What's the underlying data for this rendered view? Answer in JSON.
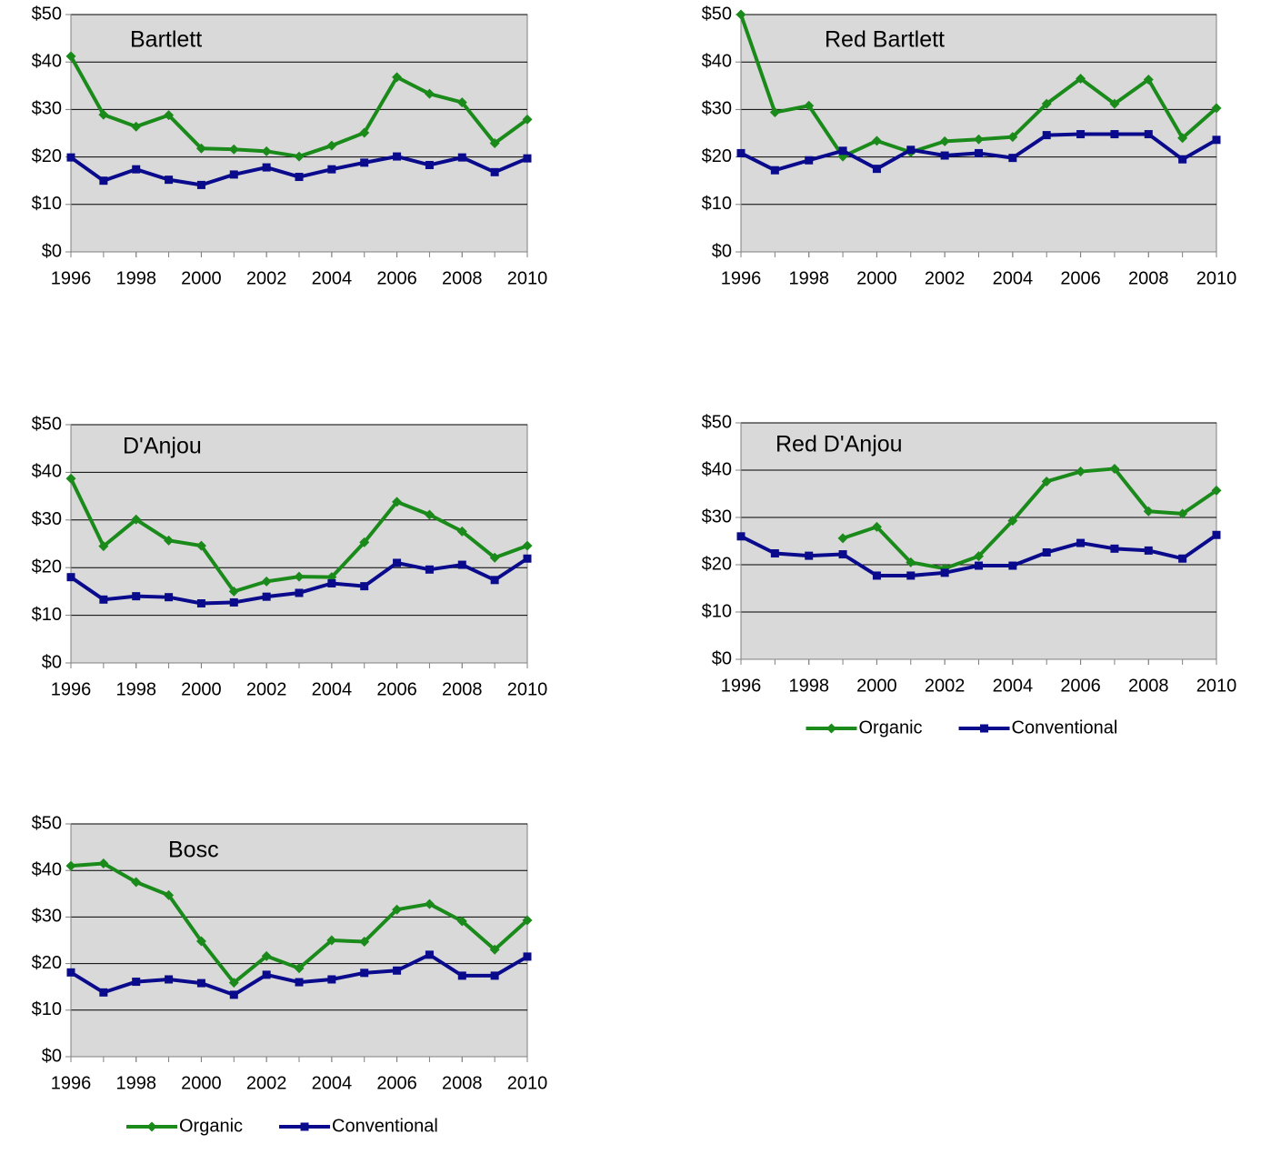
{
  "chart_data": [
    {
      "type": "line",
      "title": "Bartlett",
      "x": [
        1996,
        1997,
        1998,
        1999,
        2000,
        2001,
        2002,
        2003,
        2004,
        2005,
        2006,
        2007,
        2008,
        2009,
        2010
      ],
      "xlim": [
        1996,
        2010
      ],
      "xticks": [
        1996,
        1998,
        2000,
        2002,
        2004,
        2006,
        2008,
        2010
      ],
      "ylim": [
        0,
        50
      ],
      "yticks": [
        {
          "value": 0,
          "label": "$0"
        },
        {
          "value": 10,
          "label": "$10"
        },
        {
          "value": 20,
          "label": "$20"
        },
        {
          "value": 30,
          "label": "$30"
        },
        {
          "value": 40,
          "label": "$40"
        },
        {
          "value": 50,
          "label": "$50"
        }
      ],
      "grid": true,
      "series": [
        {
          "name": "Organic",
          "color": "#1a8a1a",
          "marker": "diamond",
          "values": [
            41.2,
            28.9,
            26.4,
            28.8,
            21.8,
            21.6,
            21.2,
            20.1,
            22.4,
            25.1,
            36.8,
            33.3,
            31.5,
            22.9,
            27.9
          ]
        },
        {
          "name": "Conventional",
          "color": "#0a0a8c",
          "marker": "square",
          "values": [
            19.9,
            15.0,
            17.4,
            15.2,
            14.1,
            16.3,
            17.8,
            15.8,
            17.4,
            18.8,
            20.1,
            18.3,
            19.9,
            16.8,
            19.7
          ]
        }
      ]
    },
    {
      "type": "line",
      "title": "Red Bartlett",
      "x": [
        1996,
        1997,
        1998,
        1999,
        2000,
        2001,
        2002,
        2003,
        2004,
        2005,
        2006,
        2007,
        2008,
        2009,
        2010
      ],
      "xlim": [
        1996,
        2010
      ],
      "xticks": [
        1996,
        1998,
        2000,
        2002,
        2004,
        2006,
        2008,
        2010
      ],
      "ylim": [
        0,
        50
      ],
      "yticks": [
        {
          "value": 0,
          "label": "$0"
        },
        {
          "value": 10,
          "label": "$10"
        },
        {
          "value": 20,
          "label": "$20"
        },
        {
          "value": 30,
          "label": "$30"
        },
        {
          "value": 40,
          "label": "$40"
        },
        {
          "value": 50,
          "label": "$50"
        }
      ],
      "grid": true,
      "series": [
        {
          "name": "Organic",
          "color": "#1a8a1a",
          "marker": "diamond",
          "values": [
            50,
            29.4,
            30.8,
            20.1,
            23.4,
            21.0,
            23.3,
            23.7,
            24.2,
            31.2,
            36.5,
            31.2,
            36.3,
            24.0,
            30.3
          ]
        },
        {
          "name": "Conventional",
          "color": "#0a0a8c",
          "marker": "square",
          "values": [
            20.8,
            17.2,
            19.3,
            21.3,
            17.5,
            21.5,
            20.3,
            20.8,
            19.8,
            24.6,
            24.8,
            24.8,
            24.8,
            19.5,
            23.6
          ]
        }
      ]
    },
    {
      "type": "line",
      "title": "D'Anjou",
      "x": [
        1996,
        1997,
        1998,
        1999,
        2000,
        2001,
        2002,
        2003,
        2004,
        2005,
        2006,
        2007,
        2008,
        2009,
        2010
      ],
      "xlim": [
        1996,
        2010
      ],
      "xticks": [
        1996,
        1998,
        2000,
        2002,
        2004,
        2006,
        2008,
        2010
      ],
      "ylim": [
        0,
        50
      ],
      "yticks": [
        {
          "value": 0,
          "label": "$0"
        },
        {
          "value": 10,
          "label": "$10"
        },
        {
          "value": 20,
          "label": "$20"
        },
        {
          "value": 30,
          "label": "$30"
        },
        {
          "value": 40,
          "label": "$40"
        },
        {
          "value": 50,
          "label": "$50"
        }
      ],
      "grid": true,
      "series": [
        {
          "name": "Organic",
          "color": "#1a8a1a",
          "marker": "diamond",
          "values": [
            38.7,
            24.5,
            30.1,
            25.7,
            24.6,
            15.0,
            17.1,
            18.1,
            18.0,
            25.3,
            33.8,
            31.1,
            27.6,
            22.1,
            24.6
          ]
        },
        {
          "name": "Conventional",
          "color": "#0a0a8c",
          "marker": "square",
          "values": [
            18.0,
            13.3,
            14.0,
            13.8,
            12.5,
            12.7,
            13.9,
            14.7,
            16.7,
            16.1,
            21.0,
            19.6,
            20.6,
            17.4,
            21.9
          ]
        }
      ]
    },
    {
      "type": "line",
      "title": "Red D'Anjou",
      "x": [
        1996,
        1997,
        1998,
        1999,
        2000,
        2001,
        2002,
        2003,
        2004,
        2005,
        2006,
        2007,
        2008,
        2009,
        2010
      ],
      "xlim": [
        1996,
        2010
      ],
      "xticks": [
        1996,
        1998,
        2000,
        2002,
        2004,
        2006,
        2008,
        2010
      ],
      "ylim": [
        0,
        50
      ],
      "yticks": [
        {
          "value": 0,
          "label": "$0"
        },
        {
          "value": 10,
          "label": "$10"
        },
        {
          "value": 20,
          "label": "$20"
        },
        {
          "value": 30,
          "label": "$30"
        },
        {
          "value": 40,
          "label": "$40"
        },
        {
          "value": 50,
          "label": "$50"
        }
      ],
      "grid": true,
      "legend": "bottom",
      "series": [
        {
          "name": "Organic",
          "color": "#1a8a1a",
          "marker": "diamond",
          "values": [
            null,
            null,
            null,
            25.6,
            28.0,
            20.5,
            19.2,
            21.8,
            29.3,
            37.6,
            39.7,
            40.3,
            31.3,
            30.8,
            35.7
          ]
        },
        {
          "name": "Conventional",
          "color": "#0a0a8c",
          "marker": "square",
          "values": [
            26.0,
            22.4,
            21.9,
            22.2,
            17.7,
            17.7,
            18.3,
            19.8,
            19.8,
            22.6,
            24.6,
            23.4,
            23.0,
            21.3,
            26.3
          ]
        }
      ]
    },
    {
      "type": "line",
      "title": "Bosc",
      "x": [
        1996,
        1997,
        1998,
        1999,
        2000,
        2001,
        2002,
        2003,
        2004,
        2005,
        2006,
        2007,
        2008,
        2009,
        2010
      ],
      "xlim": [
        1996,
        2010
      ],
      "xticks": [
        1996,
        1998,
        2000,
        2002,
        2004,
        2006,
        2008,
        2010
      ],
      "ylim": [
        0,
        50
      ],
      "yticks": [
        {
          "value": 0,
          "label": "$0"
        },
        {
          "value": 10,
          "label": "$10"
        },
        {
          "value": 20,
          "label": "$20"
        },
        {
          "value": 30,
          "label": "$30"
        },
        {
          "value": 40,
          "label": "$40"
        },
        {
          "value": 50,
          "label": "$50"
        }
      ],
      "grid": true,
      "legend": "bottom",
      "series": [
        {
          "name": "Organic",
          "color": "#1a8a1a",
          "marker": "diamond",
          "values": [
            41.0,
            41.5,
            37.5,
            34.7,
            24.8,
            15.9,
            21.6,
            19.0,
            25.0,
            24.7,
            31.6,
            32.8,
            29.1,
            23.0,
            29.3
          ]
        },
        {
          "name": "Conventional",
          "color": "#0a0a8c",
          "marker": "square",
          "values": [
            18.1,
            13.8,
            16.1,
            16.6,
            15.8,
            13.3,
            17.6,
            16.0,
            16.6,
            18.0,
            18.5,
            21.9,
            17.4,
            17.4,
            21.5
          ]
        }
      ]
    }
  ]
}
